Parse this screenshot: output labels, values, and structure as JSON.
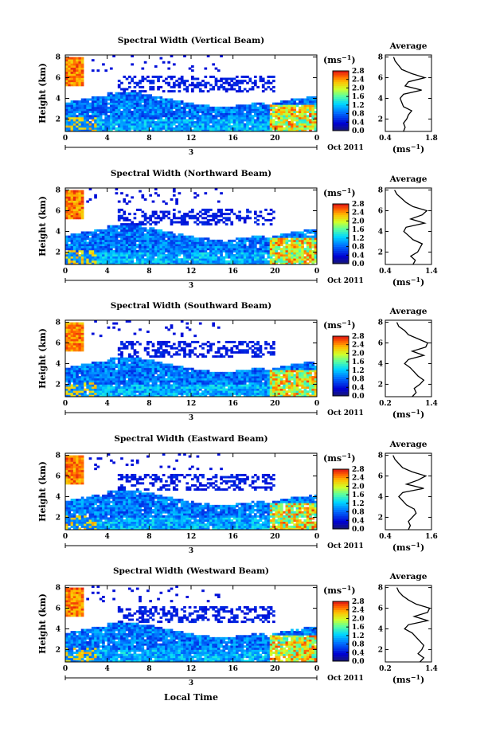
{
  "x_axis_label": "Local Time",
  "date_label": "Oct 2011",
  "day_label": "3",
  "colorbar_unit": "(ms",
  "colorbar_unit_exp": "−1",
  "profile_title": "Average",
  "profile_xunit": "(ms",
  "profile_xunit_exp": "−1",
  "height_axis_label": "Height (km)",
  "chart_data": [
    {
      "type": "heatmap",
      "title": "Spectral Width (Vertical Beam)",
      "ylabel": "Height (km)",
      "xlabel": "Local Time",
      "x_ticks": [
        "0",
        "4",
        "8",
        "12",
        "16",
        "20",
        "0"
      ],
      "xlim": [
        0,
        24
      ],
      "y_ticks": [
        "2",
        "4",
        "6",
        "8"
      ],
      "ylim": [
        0.8,
        8.2
      ],
      "colorbar_ticks": [
        "0.0",
        "0.4",
        "0.8",
        "1.2",
        "1.6",
        "2.0",
        "2.4",
        "2.8"
      ],
      "colorbar_range": [
        0,
        2.8
      ],
      "profile": {
        "title": "Average",
        "xlim": [
          0.4,
          1.8
        ],
        "x_ticks": [
          "0.4",
          "1.8"
        ],
        "y_ticks": [
          "2",
          "4",
          "6",
          "8"
        ],
        "heights": [
          0.8,
          1.2,
          1.6,
          2.0,
          2.4,
          2.8,
          3.2,
          3.6,
          4.0,
          4.4,
          4.8,
          5.2,
          5.6,
          6.0,
          6.4,
          6.8,
          7.2,
          7.6,
          8.0
        ],
        "values": [
          0.95,
          1.0,
          0.95,
          1.05,
          1.1,
          1.2,
          0.95,
          0.9,
          0.85,
          0.95,
          1.5,
          1.0,
          1.1,
          1.6,
          1.2,
          0.9,
          0.8,
          0.7,
          0.65
        ]
      }
    },
    {
      "type": "heatmap",
      "title": "Spectral Width (Northward Beam)",
      "ylabel": "Height (km)",
      "xlabel": "Local Time",
      "x_ticks": [
        "0",
        "4",
        "8",
        "12",
        "16",
        "20",
        "0"
      ],
      "xlim": [
        0,
        24
      ],
      "y_ticks": [
        "2",
        "4",
        "6",
        "8"
      ],
      "ylim": [
        0.8,
        8.2
      ],
      "colorbar_ticks": [
        "0.0",
        "0.4",
        "0.8",
        "1.2",
        "1.6",
        "2.0",
        "2.4",
        "2.8"
      ],
      "colorbar_range": [
        0,
        2.8
      ],
      "profile": {
        "title": "Average",
        "xlim": [
          0.4,
          1.4
        ],
        "x_ticks": [
          "0.4",
          "1.4"
        ],
        "y_ticks": [
          "2",
          "4",
          "6",
          "8"
        ],
        "heights": [
          0.8,
          1.2,
          1.6,
          2.0,
          2.4,
          2.8,
          3.2,
          3.6,
          4.0,
          4.4,
          4.8,
          5.2,
          5.6,
          6.0,
          6.4,
          6.8,
          7.2,
          7.6,
          8.0
        ],
        "values": [
          1.0,
          1.05,
          0.95,
          1.1,
          1.15,
          1.2,
          1.0,
          0.9,
          0.8,
          0.85,
          1.25,
          0.95,
          1.2,
          1.3,
          1.0,
          0.85,
          0.75,
          0.65,
          0.6
        ]
      }
    },
    {
      "type": "heatmap",
      "title": "Spectral Width (Southward Beam)",
      "ylabel": "Height (km)",
      "xlabel": "Local Time",
      "x_ticks": [
        "0",
        "4",
        "8",
        "12",
        "16",
        "20",
        "0"
      ],
      "xlim": [
        0,
        24
      ],
      "y_ticks": [
        "2",
        "4",
        "6",
        "8"
      ],
      "ylim": [
        0.8,
        8.2
      ],
      "colorbar_ticks": [
        "0.0",
        "0.4",
        "0.8",
        "1.2",
        "1.6",
        "2.0",
        "2.4",
        "2.8"
      ],
      "colorbar_range": [
        0,
        2.8
      ],
      "profile": {
        "title": "Average",
        "xlim": [
          0.2,
          1.4
        ],
        "x_ticks": [
          "0.2",
          "1.4"
        ],
        "y_ticks": [
          "2",
          "4",
          "6",
          "8"
        ],
        "heights": [
          0.8,
          1.2,
          1.6,
          2.0,
          2.4,
          2.8,
          3.2,
          3.6,
          4.0,
          4.4,
          4.8,
          5.2,
          5.6,
          6.0,
          6.4,
          6.8,
          7.2,
          7.6,
          8.0
        ],
        "values": [
          0.9,
          1.0,
          0.95,
          1.1,
          1.2,
          1.05,
          0.95,
          0.85,
          0.7,
          0.8,
          1.2,
          0.9,
          1.25,
          1.3,
          1.05,
          0.8,
          0.7,
          0.55,
          0.5
        ]
      }
    },
    {
      "type": "heatmap",
      "title": "Spectral Width (Eastward Beam)",
      "ylabel": "Height (km)",
      "xlabel": "Local Time",
      "x_ticks": [
        "0",
        "4",
        "8",
        "12",
        "16",
        "20",
        "0"
      ],
      "xlim": [
        0,
        24
      ],
      "y_ticks": [
        "2",
        "4",
        "6",
        "8"
      ],
      "ylim": [
        0.8,
        8.2
      ],
      "colorbar_ticks": [
        "0.0",
        "0.4",
        "0.8",
        "1.2",
        "1.6",
        "2.0",
        "2.4",
        "2.8"
      ],
      "colorbar_range": [
        0,
        2.8
      ],
      "profile": {
        "title": "Average",
        "xlim": [
          0.4,
          1.6
        ],
        "x_ticks": [
          "0.4",
          "1.6"
        ],
        "y_ticks": [
          "2",
          "4",
          "6",
          "8"
        ],
        "heights": [
          0.8,
          1.2,
          1.6,
          2.0,
          2.4,
          2.8,
          3.2,
          3.6,
          4.0,
          4.4,
          4.8,
          5.2,
          5.6,
          6.0,
          6.4,
          6.8,
          7.2,
          7.6,
          8.0
        ],
        "values": [
          1.0,
          1.05,
          1.0,
          1.1,
          1.2,
          1.15,
          0.95,
          0.85,
          0.75,
          0.85,
          1.4,
          0.95,
          1.25,
          1.45,
          1.1,
          0.85,
          0.75,
          0.65,
          0.6
        ]
      }
    },
    {
      "type": "heatmap",
      "title": "Spectral Width (Westward Beam)",
      "ylabel": "Height (km)",
      "xlabel": "Local Time",
      "x_ticks": [
        "0",
        "4",
        "8",
        "12",
        "16",
        "20",
        "0"
      ],
      "xlim": [
        0,
        24
      ],
      "y_ticks": [
        "2",
        "4",
        "6",
        "8"
      ],
      "ylim": [
        0.8,
        8.2
      ],
      "colorbar_ticks": [
        "0.0",
        "0.4",
        "0.8",
        "1.2",
        "1.6",
        "2.0",
        "2.4",
        "2.8"
      ],
      "colorbar_range": [
        0,
        2.8
      ],
      "profile": {
        "title": "Average",
        "xlim": [
          0.2,
          1.4
        ],
        "x_ticks": [
          "0.2",
          "1.4"
        ],
        "y_ticks": [
          "2",
          "4",
          "6",
          "8"
        ],
        "heights": [
          0.8,
          1.2,
          1.6,
          2.0,
          2.4,
          2.8,
          3.2,
          3.6,
          4.0,
          4.4,
          4.8,
          5.2,
          5.6,
          6.0,
          6.4,
          6.8,
          7.2,
          7.6,
          8.0
        ],
        "values": [
          1.1,
          1.2,
          1.05,
          1.15,
          1.2,
          1.1,
          1.0,
          0.9,
          0.7,
          0.8,
          1.3,
          0.95,
          1.3,
          1.35,
          1.0,
          0.8,
          0.65,
          0.55,
          0.5
        ]
      }
    }
  ]
}
